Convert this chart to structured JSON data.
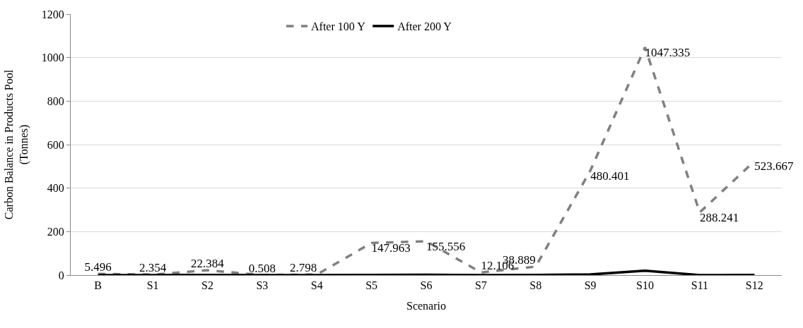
{
  "chart_data": {
    "type": "line",
    "xlabel": "Scenario",
    "ylabel": "Carbon Balance in Products Pool\n(Tonnes)",
    "categories": [
      "B",
      "S1",
      "S2",
      "S3",
      "S4",
      "S5",
      "S6",
      "S7",
      "S8",
      "S9",
      "S10",
      "S11",
      "S12"
    ],
    "series": [
      {
        "name": "After 100 Y",
        "color": "#808080",
        "line_style": "dashed",
        "values": [
          5.496,
          2.354,
          22.384,
          0.508,
          2.798,
          147.963,
          155.556,
          12.106,
          38.889,
          480.401,
          1047.335,
          288.241,
          523.667
        ],
        "value_labels": [
          "5.496",
          "2.354",
          "22.384",
          "0.508",
          "2.798",
          "147.963",
          "155.556",
          "12.106",
          "38.889",
          "480.401",
          "1047.335",
          "288.241",
          "523.667"
        ]
      },
      {
        "name": "After 200 Y",
        "color": "#000000",
        "line_style": "solid",
        "values": [
          0,
          0,
          1,
          0,
          0,
          1,
          2,
          0,
          1,
          3,
          20,
          0,
          1
        ]
      }
    ],
    "ylim": [
      0,
      1200
    ],
    "yticks": [
      0,
      200,
      400,
      600,
      800,
      1000,
      1200
    ],
    "grid": "y",
    "legend": "top",
    "marker": "none"
  }
}
